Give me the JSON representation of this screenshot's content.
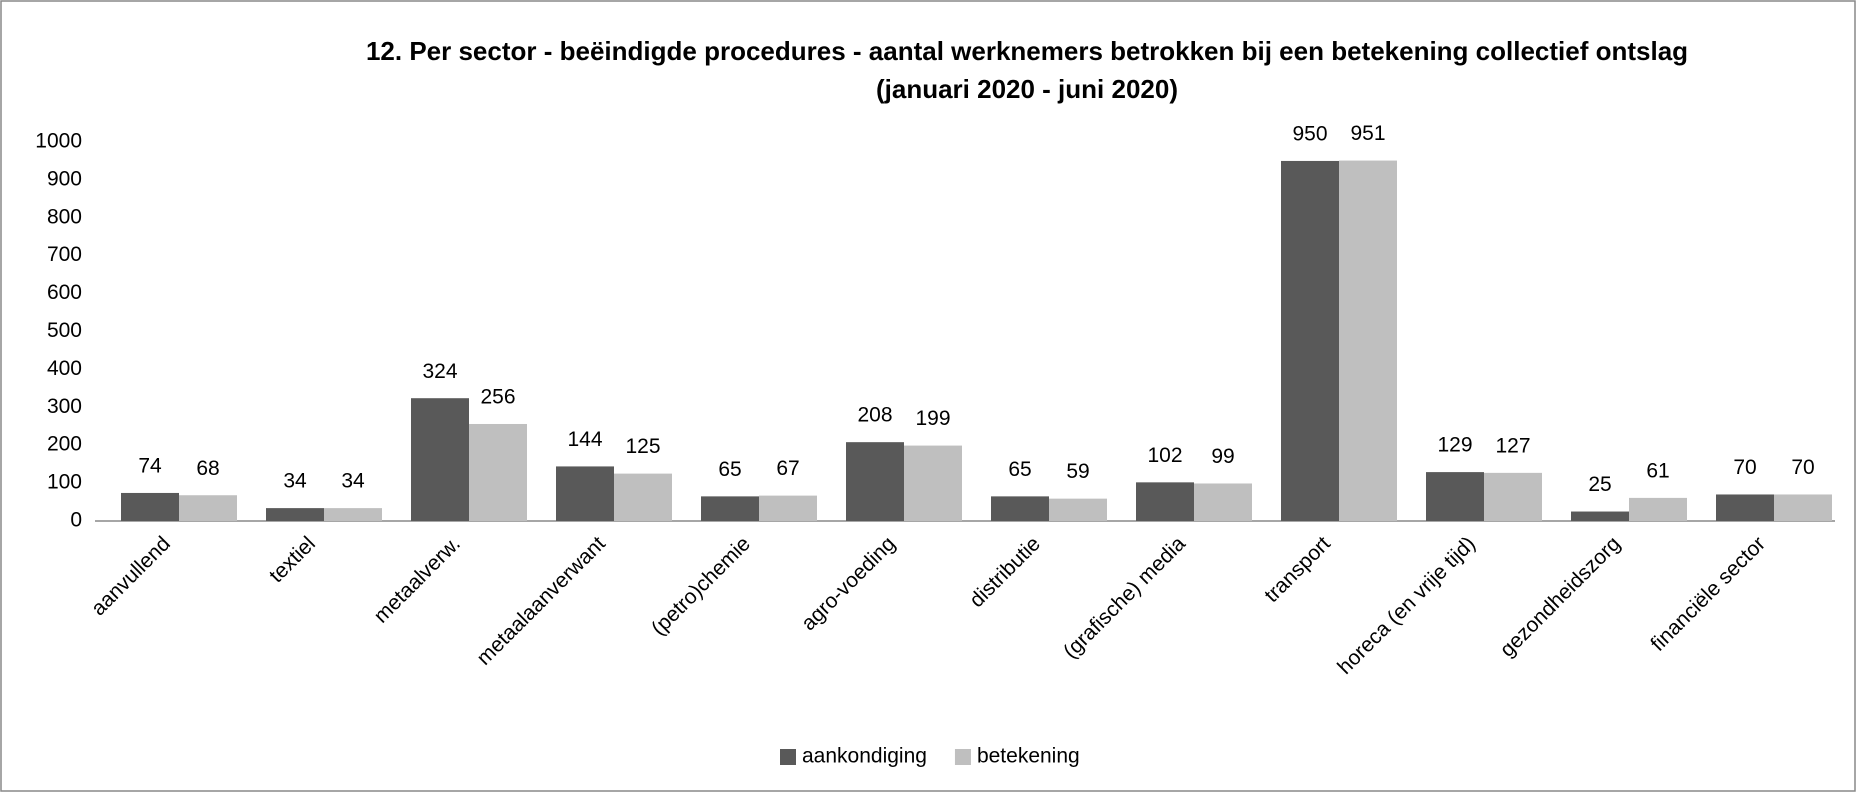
{
  "chart_data": {
    "type": "bar",
    "title": "12. Per sector - beëindigde procedures - aantal werknemers betrokken bij een betekening collectief ontslag",
    "subtitle": "(januari 2020 - juni 2020)",
    "categories": [
      "aanvullend",
      "textiel",
      "metaalverw.",
      "metaalaanverwant",
      "(petro)chemie",
      "agro-voeding",
      "distributie",
      "(grafische) media",
      "transport",
      "horeca (en vrije tijd)",
      "gezondheidszorg",
      "financiële sector"
    ],
    "series": [
      {
        "name": "aankondiging",
        "color": "#595959",
        "values": [
          74,
          34,
          324,
          144,
          65,
          208,
          65,
          102,
          950,
          129,
          25,
          70
        ]
      },
      {
        "name": "betekening",
        "color": "#bfbfbf",
        "values": [
          68,
          34,
          256,
          125,
          67,
          199,
          59,
          99,
          951,
          127,
          61,
          70
        ]
      }
    ],
    "ylim": [
      0,
      1000
    ],
    "yticks": [
      0,
      100,
      200,
      300,
      400,
      500,
      600,
      700,
      800,
      900,
      1000
    ],
    "legend": "bottom"
  }
}
